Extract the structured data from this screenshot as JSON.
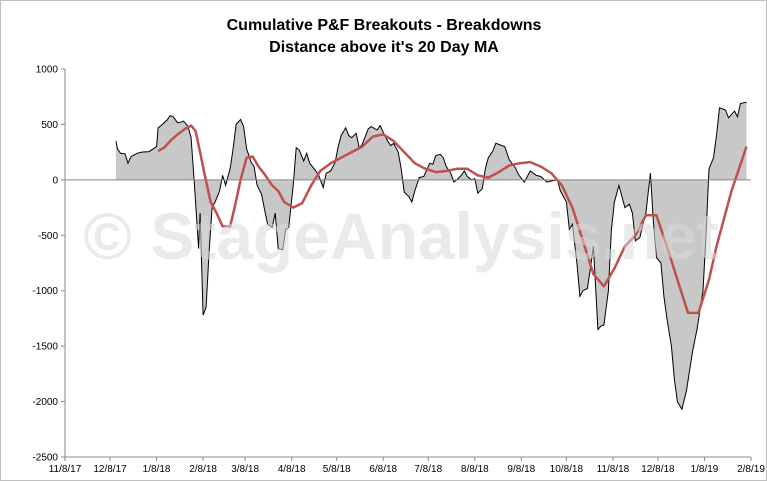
{
  "chart_data": {
    "type": "area",
    "title": "Cumulative P&F Breakouts - Breakdowns",
    "subtitle": "Distance above it's 20 Day MA",
    "watermark": "© StageAnalysis.net",
    "xlabel": "",
    "ylabel": "",
    "ylim": [
      -2500,
      1000
    ],
    "yticks": [
      1000,
      500,
      0,
      -500,
      -1000,
      -1500,
      -2000,
      -2500
    ],
    "xlim": [
      "2017-11-08",
      "2019-02-08"
    ],
    "x_ticks": [
      "11/8/17",
      "12/8/17",
      "1/8/18",
      "2/8/18",
      "3/8/18",
      "4/8/18",
      "5/8/18",
      "6/8/18",
      "7/8/18",
      "8/8/18",
      "9/8/18",
      "10/8/18",
      "11/8/18",
      "12/8/18",
      "1/8/19",
      "2/8/19"
    ],
    "grid": false,
    "legend": "none",
    "colors": {
      "area_fill": "#c8c8c8",
      "area_line": "#000000",
      "ma_line": "#c0504d",
      "axis": "#888888"
    },
    "series": [
      {
        "type": "area",
        "values": [
          [
            "2017-12-12",
            350
          ],
          [
            "2017-12-13",
            280
          ],
          [
            "2017-12-15",
            240
          ],
          [
            "2017-12-18",
            235
          ],
          [
            "2017-12-20",
            150
          ],
          [
            "2017-12-22",
            210
          ],
          [
            "2017-12-26",
            240
          ],
          [
            "2017-12-29",
            250
          ],
          [
            "2018-01-03",
            255
          ],
          [
            "2018-01-08",
            300
          ],
          [
            "2018-01-09",
            470
          ],
          [
            "2018-01-11",
            490
          ],
          [
            "2018-01-15",
            540
          ],
          [
            "2018-01-17",
            580
          ],
          [
            "2018-01-19",
            570
          ],
          [
            "2018-01-22",
            515
          ],
          [
            "2018-01-24",
            520
          ],
          [
            "2018-01-26",
            530
          ],
          [
            "2018-01-29",
            480
          ],
          [
            "2018-01-31",
            380
          ],
          [
            "2018-02-02",
            0
          ],
          [
            "2018-02-05",
            -620
          ],
          [
            "2018-02-06",
            -300
          ],
          [
            "2018-02-08",
            -1220
          ],
          [
            "2018-02-10",
            -1150
          ],
          [
            "2018-02-12",
            -650
          ],
          [
            "2018-02-14",
            -250
          ],
          [
            "2018-02-16",
            -200
          ],
          [
            "2018-02-19",
            -100
          ],
          [
            "2018-02-21",
            40
          ],
          [
            "2018-02-23",
            -50
          ],
          [
            "2018-02-26",
            100
          ],
          [
            "2018-02-28",
            280
          ],
          [
            "2018-03-02",
            500
          ],
          [
            "2018-03-05",
            545
          ],
          [
            "2018-03-07",
            480
          ],
          [
            "2018-03-09",
            280
          ],
          [
            "2018-03-12",
            160
          ],
          [
            "2018-03-14",
            120
          ],
          [
            "2018-03-16",
            -50
          ],
          [
            "2018-03-19",
            -130
          ],
          [
            "2018-03-21",
            -270
          ],
          [
            "2018-03-23",
            -400
          ],
          [
            "2018-03-26",
            -430
          ],
          [
            "2018-03-28",
            -300
          ],
          [
            "2018-03-30",
            -620
          ],
          [
            "2018-04-02",
            -630
          ],
          [
            "2018-04-04",
            -450
          ],
          [
            "2018-04-06",
            -430
          ],
          [
            "2018-04-09",
            -50
          ],
          [
            "2018-04-11",
            290
          ],
          [
            "2018-04-13",
            270
          ],
          [
            "2018-04-16",
            170
          ],
          [
            "2018-04-18",
            240
          ],
          [
            "2018-04-20",
            150
          ],
          [
            "2018-04-23",
            100
          ],
          [
            "2018-04-26",
            40
          ],
          [
            "2018-04-29",
            -70
          ],
          [
            "2018-05-01",
            60
          ],
          [
            "2018-05-04",
            80
          ],
          [
            "2018-05-07",
            160
          ],
          [
            "2018-05-09",
            300
          ],
          [
            "2018-05-11",
            400
          ],
          [
            "2018-05-14",
            470
          ],
          [
            "2018-05-16",
            400
          ],
          [
            "2018-05-18",
            380
          ],
          [
            "2018-05-21",
            420
          ],
          [
            "2018-05-23",
            290
          ],
          [
            "2018-05-25",
            320
          ],
          [
            "2018-05-29",
            460
          ],
          [
            "2018-05-31",
            480
          ],
          [
            "2018-06-04",
            450
          ],
          [
            "2018-06-06",
            490
          ],
          [
            "2018-06-08",
            430
          ],
          [
            "2018-06-11",
            350
          ],
          [
            "2018-06-13",
            310
          ],
          [
            "2018-06-15",
            330
          ],
          [
            "2018-06-18",
            250
          ],
          [
            "2018-06-20",
            100
          ],
          [
            "2018-06-22",
            -110
          ],
          [
            "2018-06-25",
            -150
          ],
          [
            "2018-06-27",
            -200
          ],
          [
            "2018-06-29",
            -100
          ],
          [
            "2018-07-02",
            20
          ],
          [
            "2018-07-05",
            30
          ],
          [
            "2018-07-09",
            150
          ],
          [
            "2018-07-11",
            140
          ],
          [
            "2018-07-13",
            220
          ],
          [
            "2018-07-16",
            230
          ],
          [
            "2018-07-18",
            200
          ],
          [
            "2018-07-20",
            120
          ],
          [
            "2018-07-23",
            60
          ],
          [
            "2018-07-25",
            -20
          ],
          [
            "2018-07-27",
            0
          ],
          [
            "2018-07-30",
            40
          ],
          [
            "2018-08-01",
            80
          ],
          [
            "2018-08-03",
            30
          ],
          [
            "2018-08-06",
            0
          ],
          [
            "2018-08-08",
            10
          ],
          [
            "2018-08-10",
            -120
          ],
          [
            "2018-08-13",
            -80
          ],
          [
            "2018-08-15",
            100
          ],
          [
            "2018-08-17",
            200
          ],
          [
            "2018-08-20",
            260
          ],
          [
            "2018-08-22",
            330
          ],
          [
            "2018-08-24",
            320
          ],
          [
            "2018-08-28",
            300
          ],
          [
            "2018-08-31",
            180
          ],
          [
            "2018-09-04",
            110
          ],
          [
            "2018-09-06",
            50
          ],
          [
            "2018-09-10",
            -20
          ],
          [
            "2018-09-12",
            30
          ],
          [
            "2018-09-14",
            80
          ],
          [
            "2018-09-18",
            40
          ],
          [
            "2018-09-21",
            30
          ],
          [
            "2018-09-25",
            -20
          ],
          [
            "2018-09-28",
            -10
          ],
          [
            "2018-10-02",
            0
          ],
          [
            "2018-10-04",
            -100
          ],
          [
            "2018-10-08",
            -200
          ],
          [
            "2018-10-10",
            -450
          ],
          [
            "2018-10-12",
            -400
          ],
          [
            "2018-10-15",
            -750
          ],
          [
            "2018-10-17",
            -1050
          ],
          [
            "2018-10-19",
            -1000
          ],
          [
            "2018-10-22",
            -980
          ],
          [
            "2018-10-24",
            -800
          ],
          [
            "2018-10-26",
            -600
          ],
          [
            "2018-10-29",
            -1350
          ],
          [
            "2018-10-31",
            -1320
          ],
          [
            "2018-11-02",
            -1310
          ],
          [
            "2018-11-05",
            -1000
          ],
          [
            "2018-11-07",
            -450
          ],
          [
            "2018-11-09",
            -200
          ],
          [
            "2018-11-12",
            -50
          ],
          [
            "2018-11-14",
            -150
          ],
          [
            "2018-11-16",
            -250
          ],
          [
            "2018-11-19",
            -220
          ],
          [
            "2018-11-21",
            -300
          ],
          [
            "2018-11-23",
            -550
          ],
          [
            "2018-11-26",
            -520
          ],
          [
            "2018-11-28",
            -400
          ],
          [
            "2018-11-30",
            -300
          ],
          [
            "2018-12-03",
            60
          ],
          [
            "2018-12-05",
            -380
          ],
          [
            "2018-12-07",
            -700
          ],
          [
            "2018-12-10",
            -750
          ],
          [
            "2018-12-12",
            -1050
          ],
          [
            "2018-12-14",
            -1250
          ],
          [
            "2018-12-17",
            -1500
          ],
          [
            "2018-12-19",
            -1800
          ],
          [
            "2018-12-21",
            -2000
          ],
          [
            "2018-12-24",
            -2070
          ],
          [
            "2018-12-27",
            -1900
          ],
          [
            "2018-12-31",
            -1550
          ],
          [
            "2019-01-03",
            -1350
          ],
          [
            "2019-01-07",
            -1000
          ],
          [
            "2019-01-09",
            -500
          ],
          [
            "2019-01-11",
            100
          ],
          [
            "2019-01-14",
            200
          ],
          [
            "2019-01-16",
            400
          ],
          [
            "2019-01-18",
            650
          ],
          [
            "2019-01-22",
            630
          ],
          [
            "2019-01-24",
            560
          ],
          [
            "2019-01-28",
            620
          ],
          [
            "2019-01-30",
            570
          ],
          [
            "2019-02-01",
            690
          ],
          [
            "2019-02-05",
            700
          ]
        ]
      },
      {
        "type": "line",
        "values": [
          [
            "2018-01-09",
            260
          ],
          [
            "2018-01-13",
            290
          ],
          [
            "2018-01-17",
            350
          ],
          [
            "2018-01-22",
            410
          ],
          [
            "2018-01-27",
            460
          ],
          [
            "2018-01-31",
            490
          ],
          [
            "2018-02-03",
            440
          ],
          [
            "2018-02-06",
            250
          ],
          [
            "2018-02-09",
            50
          ],
          [
            "2018-02-13",
            -200
          ],
          [
            "2018-02-17",
            -300
          ],
          [
            "2018-02-21",
            -420
          ],
          [
            "2018-02-26",
            -420
          ],
          [
            "2018-03-01",
            -250
          ],
          [
            "2018-03-05",
            0
          ],
          [
            "2018-03-09",
            200
          ],
          [
            "2018-03-13",
            210
          ],
          [
            "2018-03-17",
            120
          ],
          [
            "2018-03-21",
            50
          ],
          [
            "2018-03-26",
            -50
          ],
          [
            "2018-03-30",
            -100
          ],
          [
            "2018-04-03",
            -200
          ],
          [
            "2018-04-09",
            -250
          ],
          [
            "2018-04-15",
            -210
          ],
          [
            "2018-04-21",
            -50
          ],
          [
            "2018-04-27",
            80
          ],
          [
            "2018-05-04",
            150
          ],
          [
            "2018-05-11",
            200
          ],
          [
            "2018-05-18",
            250
          ],
          [
            "2018-05-25",
            300
          ],
          [
            "2018-06-01",
            390
          ],
          [
            "2018-06-08",
            410
          ],
          [
            "2018-06-15",
            350
          ],
          [
            "2018-06-22",
            250
          ],
          [
            "2018-06-29",
            150
          ],
          [
            "2018-07-06",
            100
          ],
          [
            "2018-07-13",
            70
          ],
          [
            "2018-07-20",
            80
          ],
          [
            "2018-07-27",
            100
          ],
          [
            "2018-08-03",
            100
          ],
          [
            "2018-08-10",
            40
          ],
          [
            "2018-08-17",
            20
          ],
          [
            "2018-08-24",
            70
          ],
          [
            "2018-08-31",
            130
          ],
          [
            "2018-09-07",
            150
          ],
          [
            "2018-09-14",
            160
          ],
          [
            "2018-09-21",
            120
          ],
          [
            "2018-09-28",
            60
          ],
          [
            "2018-10-05",
            -50
          ],
          [
            "2018-10-12",
            -250
          ],
          [
            "2018-10-19",
            -550
          ],
          [
            "2018-10-26",
            -850
          ],
          [
            "2018-11-02",
            -960
          ],
          [
            "2018-11-09",
            -800
          ],
          [
            "2018-11-16",
            -600
          ],
          [
            "2018-11-23",
            -500
          ],
          [
            "2018-11-30",
            -320
          ],
          [
            "2018-12-07",
            -320
          ],
          [
            "2018-12-14",
            -600
          ],
          [
            "2018-12-21",
            -900
          ],
          [
            "2018-12-28",
            -1200
          ],
          [
            "2019-01-04",
            -1200
          ],
          [
            "2019-01-11",
            -900
          ],
          [
            "2019-01-16",
            -600
          ],
          [
            "2019-01-21",
            -350
          ],
          [
            "2019-01-26",
            -100
          ],
          [
            "2019-01-31",
            100
          ],
          [
            "2019-02-05",
            300
          ]
        ]
      }
    ]
  }
}
